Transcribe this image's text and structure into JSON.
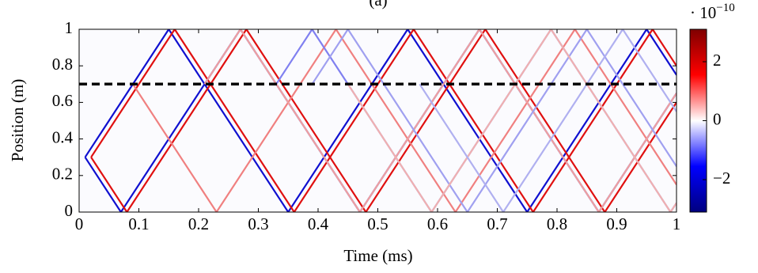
{
  "chart_data": {
    "type": "heatmap",
    "title": "(a)",
    "x_label": "Time (ms)",
    "y_label": "Position (m)",
    "xlim": [
      0,
      1
    ],
    "ylim": [
      0,
      1
    ],
    "xticks": [
      0,
      0.1,
      0.2,
      0.3,
      0.4,
      0.5,
      0.6,
      0.7,
      0.8,
      0.9,
      1
    ],
    "yticks": [
      0,
      0.2,
      0.4,
      0.6,
      0.8,
      1
    ],
    "hline": 0.7,
    "hline_color": "#000000",
    "traces": [
      {
        "color": "#1010d0",
        "x": [
          0.01,
          0.15,
          0.35,
          0.55,
          0.75,
          0.95,
          1.0
        ],
        "values": [
          0.3,
          1,
          0,
          1,
          0,
          1,
          0.75
        ]
      },
      {
        "color": "#e01010",
        "x": [
          0.02,
          0.16,
          0.36,
          0.56,
          0.76,
          0.96,
          1.0
        ],
        "values": [
          0.3,
          1,
          0,
          1,
          0,
          1,
          0.8
        ]
      },
      {
        "color": "#1010d0",
        "x": [
          0.01,
          0.07,
          0.27,
          0.47,
          0.67,
          0.87,
          1.0
        ],
        "values": [
          0.3,
          0,
          1,
          0,
          1,
          0,
          0.65
        ]
      },
      {
        "color": "#e01010",
        "x": [
          0.02,
          0.08,
          0.28,
          0.48,
          0.68,
          0.88,
          1.0
        ],
        "values": [
          0.3,
          0,
          1,
          0,
          1,
          0,
          0.6
        ]
      },
      {
        "color": "#f08080",
        "x": [
          0.09,
          0.23,
          0.43,
          0.63,
          0.83,
          1.0
        ],
        "values": [
          0.7,
          0,
          1,
          0,
          1,
          0.15
        ]
      },
      {
        "color": "#8080f0",
        "x": [
          0.33,
          0.39,
          0.59,
          0.79,
          0.99,
          1.0
        ],
        "values": [
          0.7,
          1,
          0,
          1,
          0,
          0.05
        ]
      },
      {
        "color": "#f0a0a0",
        "x": [
          0.21,
          0.27,
          0.47,
          0.67,
          0.87,
          1.0
        ],
        "values": [
          0.7,
          1,
          0,
          1,
          0,
          0.65
        ]
      },
      {
        "color": "#a0a0f0",
        "x": [
          0.39,
          0.45,
          0.65,
          0.85,
          1.0
        ],
        "values": [
          0.7,
          1,
          0,
          1,
          0.25
        ]
      },
      {
        "color": "#f0b0b0",
        "x": [
          0.45,
          0.59,
          0.79,
          0.99,
          1.0
        ],
        "values": [
          0.7,
          0,
          1,
          0,
          0.05
        ]
      },
      {
        "color": "#b0b0f0",
        "x": [
          0.57,
          0.71,
          0.91,
          1.0
        ],
        "values": [
          0.7,
          0,
          1,
          0.55
        ]
      }
    ],
    "colorbar": {
      "colors": [
        "#00007f",
        "#0000ff",
        "#ffffff",
        "#ff0000",
        "#7f0000"
      ],
      "lim": [
        -3.1,
        3.1
      ],
      "ticks": [
        {
          "value": -2,
          "label": "−2"
        },
        0,
        2
      ],
      "multiplier": "· 10",
      "exponent": "−10"
    }
  }
}
